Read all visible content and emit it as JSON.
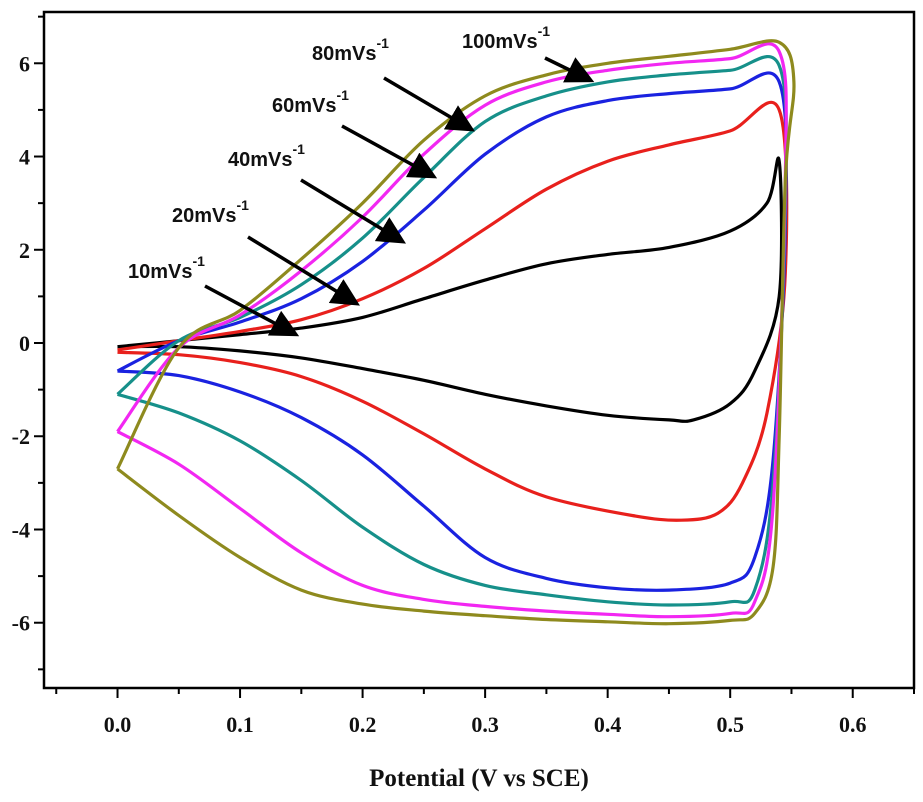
{
  "chart_data": {
    "type": "line",
    "title": "",
    "xlabel": "Potential (V vs SCE)",
    "ylabel": "",
    "xlim": [
      -0.06,
      0.65
    ],
    "ylim": [
      -7.4,
      7.1
    ],
    "xticks": [
      "0.0",
      "0.1",
      "0.2",
      "0.3",
      "0.4",
      "0.5",
      "0.6"
    ],
    "yticks": [
      "-6",
      "-4",
      "-2",
      "0",
      "2",
      "4",
      "6"
    ],
    "grid": false,
    "colors": {
      "10mVs-1": "#000000",
      "20mVs-1": "#e8201c",
      "40mVs-1": "#1a22e0",
      "60mVs-1": "#16908a",
      "80mVs-1": "#f227f2",
      "100mVs-1": "#8e8a1e"
    },
    "series": [
      {
        "name": "10mVs-1",
        "anodic": [
          [
            0.0,
            -0.08
          ],
          [
            0.05,
            0.05
          ],
          [
            0.1,
            0.18
          ],
          [
            0.15,
            0.32
          ],
          [
            0.2,
            0.55
          ],
          [
            0.25,
            0.95
          ],
          [
            0.3,
            1.35
          ],
          [
            0.35,
            1.7
          ],
          [
            0.4,
            1.9
          ],
          [
            0.45,
            2.05
          ],
          [
            0.5,
            2.4
          ],
          [
            0.53,
            3.0
          ],
          [
            0.54,
            3.9
          ]
        ],
        "cathodic": [
          [
            0.54,
            1.0
          ],
          [
            0.52,
            -0.6
          ],
          [
            0.5,
            -1.3
          ],
          [
            0.47,
            -1.65
          ],
          [
            0.45,
            -1.65
          ],
          [
            0.4,
            -1.55
          ],
          [
            0.35,
            -1.35
          ],
          [
            0.3,
            -1.1
          ],
          [
            0.25,
            -0.8
          ],
          [
            0.2,
            -0.55
          ],
          [
            0.15,
            -0.32
          ],
          [
            0.1,
            -0.17
          ],
          [
            0.05,
            -0.08
          ],
          [
            0.0,
            -0.08
          ]
        ]
      },
      {
        "name": "20mVs-1",
        "anodic": [
          [
            0.0,
            -0.15
          ],
          [
            0.05,
            0.05
          ],
          [
            0.1,
            0.25
          ],
          [
            0.15,
            0.5
          ],
          [
            0.2,
            0.95
          ],
          [
            0.25,
            1.6
          ],
          [
            0.3,
            2.45
          ],
          [
            0.35,
            3.3
          ],
          [
            0.4,
            3.9
          ],
          [
            0.45,
            4.25
          ],
          [
            0.5,
            4.55
          ],
          [
            0.54,
            5.0
          ]
        ],
        "cathodic": [
          [
            0.545,
            1.5
          ],
          [
            0.53,
            -1.5
          ],
          [
            0.51,
            -3.0
          ],
          [
            0.49,
            -3.65
          ],
          [
            0.46,
            -3.8
          ],
          [
            0.42,
            -3.7
          ],
          [
            0.35,
            -3.3
          ],
          [
            0.3,
            -2.7
          ],
          [
            0.25,
            -1.95
          ],
          [
            0.2,
            -1.25
          ],
          [
            0.15,
            -0.72
          ],
          [
            0.1,
            -0.42
          ],
          [
            0.05,
            -0.25
          ],
          [
            0.0,
            -0.2
          ]
        ]
      },
      {
        "name": "40mVs-1",
        "anodic": [
          [
            0.0,
            -0.6
          ],
          [
            0.05,
            0.05
          ],
          [
            0.1,
            0.45
          ],
          [
            0.15,
            0.95
          ],
          [
            0.2,
            1.75
          ],
          [
            0.25,
            2.85
          ],
          [
            0.3,
            4.05
          ],
          [
            0.35,
            4.85
          ],
          [
            0.4,
            5.2
          ],
          [
            0.45,
            5.35
          ],
          [
            0.5,
            5.45
          ],
          [
            0.54,
            5.6
          ]
        ],
        "cathodic": [
          [
            0.545,
            2.5
          ],
          [
            0.535,
            -2.5
          ],
          [
            0.52,
            -4.6
          ],
          [
            0.5,
            -5.15
          ],
          [
            0.45,
            -5.3
          ],
          [
            0.4,
            -5.25
          ],
          [
            0.35,
            -5.05
          ],
          [
            0.3,
            -4.6
          ],
          [
            0.25,
            -3.5
          ],
          [
            0.2,
            -2.4
          ],
          [
            0.15,
            -1.6
          ],
          [
            0.1,
            -1.05
          ],
          [
            0.05,
            -0.7
          ],
          [
            0.0,
            -0.6
          ]
        ]
      },
      {
        "name": "60mVs-1",
        "anodic": [
          [
            0.0,
            -1.1
          ],
          [
            0.05,
            0.05
          ],
          [
            0.1,
            0.55
          ],
          [
            0.15,
            1.25
          ],
          [
            0.2,
            2.25
          ],
          [
            0.25,
            3.55
          ],
          [
            0.3,
            4.75
          ],
          [
            0.35,
            5.3
          ],
          [
            0.4,
            5.6
          ],
          [
            0.45,
            5.75
          ],
          [
            0.5,
            5.85
          ],
          [
            0.54,
            5.95
          ]
        ],
        "cathodic": [
          [
            0.545,
            3.0
          ],
          [
            0.535,
            -3.0
          ],
          [
            0.52,
            -5.3
          ],
          [
            0.5,
            -5.55
          ],
          [
            0.45,
            -5.62
          ],
          [
            0.4,
            -5.55
          ],
          [
            0.35,
            -5.4
          ],
          [
            0.3,
            -5.2
          ],
          [
            0.25,
            -4.75
          ],
          [
            0.2,
            -3.95
          ],
          [
            0.15,
            -2.95
          ],
          [
            0.1,
            -2.1
          ],
          [
            0.05,
            -1.5
          ],
          [
            0.0,
            -1.1
          ]
        ]
      },
      {
        "name": "80mVs-1",
        "anodic": [
          [
            0.0,
            -1.9
          ],
          [
            0.05,
            -0.1
          ],
          [
            0.1,
            0.6
          ],
          [
            0.15,
            1.55
          ],
          [
            0.2,
            2.7
          ],
          [
            0.25,
            4.05
          ],
          [
            0.3,
            5.1
          ],
          [
            0.35,
            5.6
          ],
          [
            0.4,
            5.85
          ],
          [
            0.45,
            6.0
          ],
          [
            0.5,
            6.1
          ],
          [
            0.54,
            6.25
          ]
        ],
        "cathodic": [
          [
            0.545,
            3.5
          ],
          [
            0.535,
            -3.5
          ],
          [
            0.52,
            -5.55
          ],
          [
            0.5,
            -5.8
          ],
          [
            0.45,
            -5.87
          ],
          [
            0.4,
            -5.82
          ],
          [
            0.35,
            -5.75
          ],
          [
            0.3,
            -5.65
          ],
          [
            0.25,
            -5.5
          ],
          [
            0.2,
            -5.2
          ],
          [
            0.15,
            -4.5
          ],
          [
            0.1,
            -3.55
          ],
          [
            0.05,
            -2.6
          ],
          [
            0.0,
            -1.9
          ]
        ]
      },
      {
        "name": "100mVs-1",
        "anodic": [
          [
            0.0,
            -2.7
          ],
          [
            0.05,
            -0.1
          ],
          [
            0.1,
            0.7
          ],
          [
            0.15,
            1.8
          ],
          [
            0.2,
            3.0
          ],
          [
            0.25,
            4.35
          ],
          [
            0.3,
            5.3
          ],
          [
            0.35,
            5.75
          ],
          [
            0.4,
            6.0
          ],
          [
            0.45,
            6.15
          ],
          [
            0.5,
            6.3
          ],
          [
            0.54,
            6.45
          ]
        ],
        "cathodic": [
          [
            0.552,
            5.6
          ],
          [
            0.545,
            3.5
          ],
          [
            0.54,
            -2.0
          ],
          [
            0.535,
            -4.8
          ],
          [
            0.52,
            -5.8
          ],
          [
            0.5,
            -5.95
          ],
          [
            0.45,
            -6.02
          ],
          [
            0.4,
            -5.98
          ],
          [
            0.35,
            -5.93
          ],
          [
            0.3,
            -5.85
          ],
          [
            0.25,
            -5.75
          ],
          [
            0.2,
            -5.6
          ],
          [
            0.15,
            -5.3
          ],
          [
            0.1,
            -4.6
          ],
          [
            0.05,
            -3.7
          ],
          [
            0.0,
            -2.7
          ]
        ]
      }
    ],
    "annotations": [
      {
        "base": "10mVs",
        "sup": "-1",
        "series": "10mVs-1"
      },
      {
        "base": "20mVs",
        "sup": "-1",
        "series": "20mVs-1"
      },
      {
        "base": "40mVs",
        "sup": "-1",
        "series": "40mVs-1"
      },
      {
        "base": "60mVs",
        "sup": "-1",
        "series": "60mVs-1"
      },
      {
        "base": "80mVs",
        "sup": "-1",
        "series": "80mVs-1"
      },
      {
        "base": "100mVs",
        "sup": "-1",
        "series": "100mVs-1"
      }
    ]
  }
}
